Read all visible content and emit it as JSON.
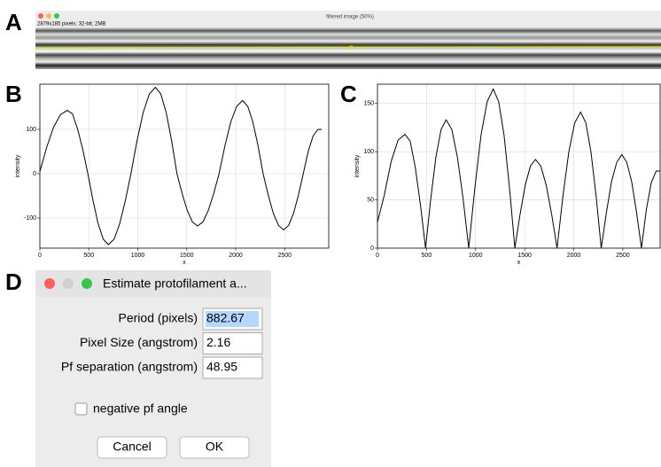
{
  "panel_labels": [
    "A",
    "B",
    "C",
    "D"
  ],
  "image_window": {
    "title": "filtered image (50%)",
    "info": "2879x185 pixels; 32-bit; 2MB"
  },
  "chart_data": [
    {
      "type": "line",
      "xlabel": "x",
      "ylabel": "intensity",
      "color": "#000000",
      "grid": true,
      "xlim": [
        0,
        2950
      ],
      "ylim": [
        -168,
        202
      ],
      "xticks": [
        0,
        500,
        1000,
        1500,
        2000,
        2500
      ],
      "yticks": [
        -100,
        0,
        100
      ],
      "x": [
        0,
        70,
        140,
        210,
        280,
        333,
        385,
        438,
        490,
        543,
        595,
        648,
        700,
        758,
        815,
        873,
        930,
        993,
        1055,
        1118,
        1180,
        1235,
        1290,
        1345,
        1400,
        1453,
        1505,
        1558,
        1610,
        1665,
        1720,
        1775,
        1830,
        1890,
        1950,
        2010,
        2070,
        2123,
        2175,
        2228,
        2280,
        2333,
        2385,
        2438,
        2490,
        2540,
        2590,
        2640,
        2690,
        2740,
        2790,
        2840,
        2879
      ],
      "values": [
        5,
        60,
        105,
        133,
        143,
        135,
        101,
        55,
        0,
        -61,
        -113,
        -148,
        -160,
        -148,
        -113,
        -61,
        0,
        75,
        138,
        180,
        195,
        180,
        138,
        75,
        0,
        -45,
        -83,
        -109,
        -118,
        -109,
        -83,
        -45,
        0,
        63,
        117,
        152,
        165,
        152,
        117,
        63,
        0,
        -49,
        -90,
        -117,
        -127,
        -117,
        -90,
        -49,
        0,
        50,
        85,
        100,
        100
      ]
    },
    {
      "type": "line",
      "xlabel": "x",
      "ylabel": "intensity",
      "color": "#000000",
      "grid": true,
      "xlim": [
        0,
        2880
      ],
      "ylim": [
        0,
        170
      ],
      "xticks": [
        0,
        500,
        1000,
        1500,
        2000,
        2500
      ],
      "yticks": [
        0,
        50,
        100,
        150
      ],
      "x": [
        0,
        70,
        140,
        210,
        280,
        333,
        385,
        438,
        490,
        543,
        595,
        648,
        700,
        758,
        815,
        873,
        930,
        993,
        1055,
        1118,
        1180,
        1235,
        1290,
        1345,
        1400,
        1453,
        1505,
        1558,
        1610,
        1665,
        1720,
        1775,
        1830,
        1890,
        1950,
        2010,
        2070,
        2123,
        2175,
        2228,
        2280,
        2333,
        2385,
        2438,
        2490,
        2540,
        2590,
        2640,
        2690,
        2740,
        2790,
        2840,
        2879
      ],
      "values": [
        27,
        55,
        90,
        112,
        118,
        111,
        84,
        45,
        0,
        51,
        94,
        123,
        133,
        123,
        94,
        51,
        0,
        63,
        117,
        152,
        165,
        152,
        117,
        63,
        0,
        35,
        65,
        85,
        92,
        85,
        65,
        35,
        0,
        54,
        100,
        130,
        141,
        130,
        100,
        54,
        0,
        37,
        69,
        89,
        97,
        89,
        69,
        37,
        0,
        40,
        68,
        80,
        80
      ]
    }
  ],
  "dialog": {
    "title": "Estimate protofilament a...",
    "fields": [
      {
        "label": "Period (pixels)",
        "value": "882.67"
      },
      {
        "label": "Pixel Size (angstrom)",
        "value": "2.16"
      },
      {
        "label": "Pf separation (angstrom)",
        "value": "48.95"
      }
    ],
    "checkbox": "negative pf angle",
    "buttons": [
      "Cancel",
      "OK"
    ]
  }
}
